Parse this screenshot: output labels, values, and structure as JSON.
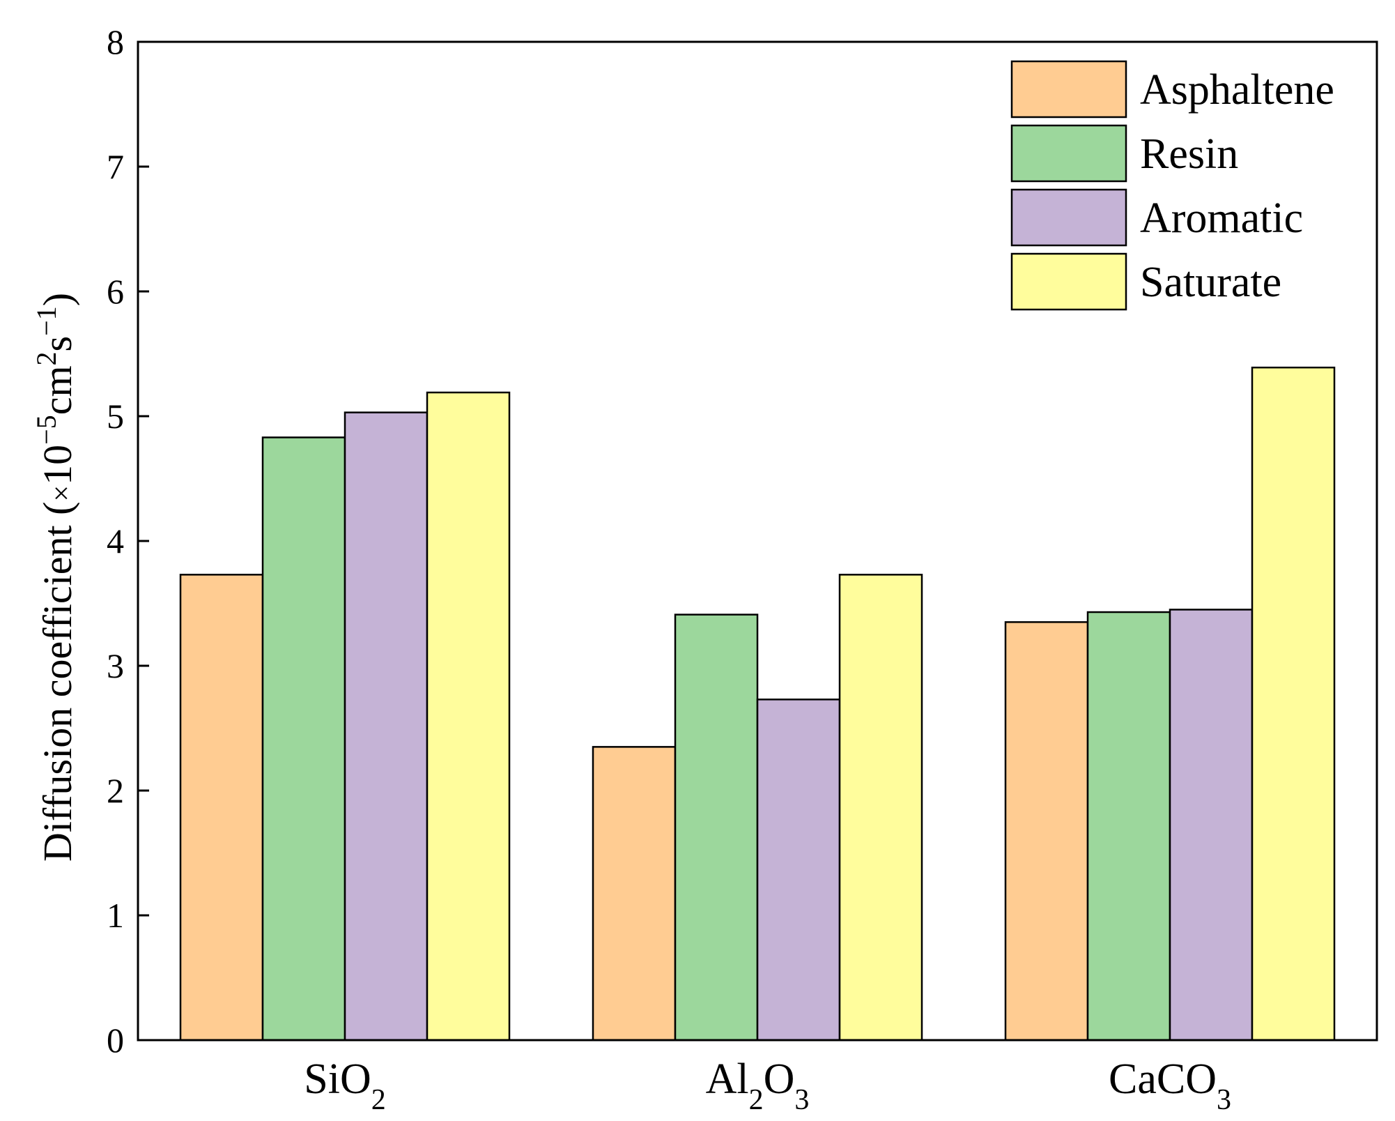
{
  "chart_data": {
    "type": "bar",
    "title": "",
    "xlabel": "",
    "ylabel": {
      "text": "Diffusion coefficient (",
      "times": "×",
      "ten": "10",
      "exp1": "−5",
      "unit_cm": "cm",
      "exp2": "2",
      "unit_s": "s",
      "exp3": "−1",
      "close": ")"
    },
    "categories": [
      {
        "base": "SiO",
        "sub1": "2",
        "mid": "",
        "sub2": ""
      },
      {
        "base": "Al",
        "sub1": "2",
        "mid": "O",
        "sub2": "3"
      },
      {
        "base": "CaCO",
        "sub1": "3",
        "mid": "",
        "sub2": ""
      }
    ],
    "series": [
      {
        "name": "Asphaltene",
        "color": "#FFCC92",
        "values": [
          3.73,
          2.35,
          3.35
        ]
      },
      {
        "name": "Resin",
        "color": "#9CD79C",
        "values": [
          4.83,
          3.41,
          3.43
        ]
      },
      {
        "name": "Aromatic",
        "color": "#C5B3D6",
        "values": [
          5.03,
          2.73,
          3.45
        ]
      },
      {
        "name": "Saturate",
        "color": "#FFFD9C",
        "values": [
          5.19,
          3.73,
          5.39
        ]
      }
    ],
    "ylim": [
      0,
      8
    ],
    "yticks": [
      "0",
      "1",
      "2",
      "3",
      "4",
      "5",
      "6",
      "7",
      "8"
    ],
    "legend_position": "top-right",
    "grid": false
  }
}
